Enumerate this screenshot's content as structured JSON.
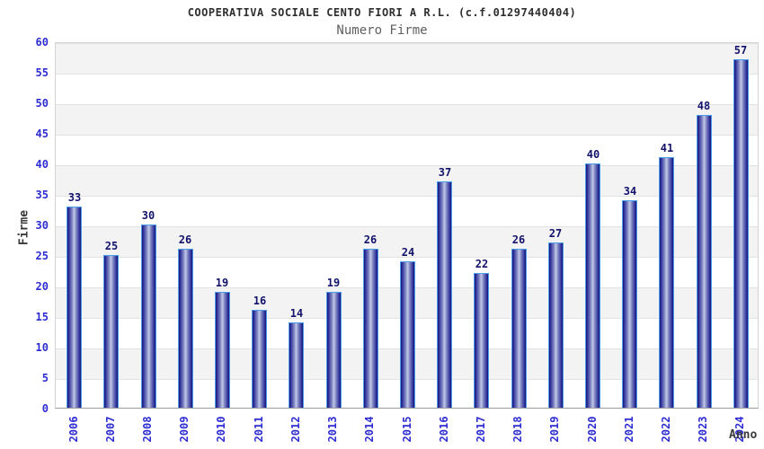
{
  "chart_data": {
    "type": "bar",
    "title": "COOPERATIVA SOCIALE CENTO FIORI A R.L. (c.f.01297440404)",
    "subtitle": "Numero Firme",
    "xlabel": "Anno",
    "ylabel": "Firme",
    "categories": [
      "2006",
      "2007",
      "2008",
      "2009",
      "2010",
      "2011",
      "2012",
      "2013",
      "2014",
      "2015",
      "2016",
      "2017",
      "2018",
      "2019",
      "2020",
      "2021",
      "2022",
      "2023",
      "2024"
    ],
    "values": [
      33,
      25,
      30,
      26,
      19,
      16,
      14,
      19,
      26,
      24,
      37,
      22,
      26,
      27,
      40,
      34,
      41,
      48,
      57
    ],
    "ylim": [
      0,
      60
    ],
    "ytick_step": 5,
    "grid": true,
    "bands_alternating": true,
    "legend": null,
    "colors": {
      "bar_edge_dark": "#14147a",
      "bar_center_light": "#c3c9e8",
      "bar_outline": "#4a9ee8",
      "tick_label": "#2d2dd2",
      "value_label": "#13136b",
      "axis_title": "#3a3a3a",
      "title_text": "#2e2e2e",
      "subtitle_text": "#5f5f5f",
      "band_gray": "#f3f3f3",
      "gridline": "#e2e2e2",
      "background": "#ffffff"
    }
  }
}
